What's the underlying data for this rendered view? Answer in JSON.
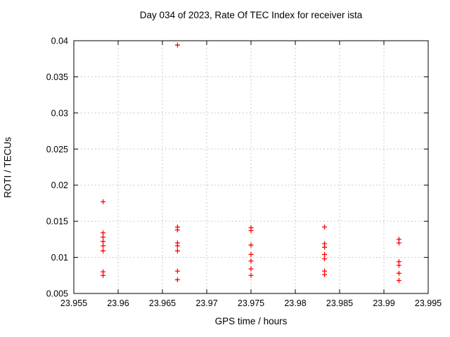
{
  "title": "Day 034 of 2023, Rate Of TEC Index for receiver ista",
  "chart_data": {
    "type": "scatter",
    "title": "Day 034 of 2023, Rate Of TEC Index for receiver ista",
    "xlabel": "GPS time / hours",
    "ylabel": "ROTI / TECUs",
    "xlim": [
      23.955,
      23.995
    ],
    "ylim": [
      0.005,
      0.04
    ],
    "xticks": [
      23.955,
      23.96,
      23.965,
      23.97,
      23.975,
      23.98,
      23.985,
      23.99,
      23.995
    ],
    "xtick_labels": [
      "23.955",
      "23.96",
      "23.965",
      "23.97",
      "23.975",
      "23.98",
      "23.985",
      "23.99",
      "23.995"
    ],
    "yticks": [
      0.005,
      0.01,
      0.015,
      0.02,
      0.025,
      0.03,
      0.035,
      0.04
    ],
    "ytick_labels": [
      "0.005",
      "0.01",
      "0.015",
      "0.02",
      "0.025",
      "0.03",
      "0.035",
      "0.04"
    ],
    "grid": true,
    "legend": "none",
    "marker": "plus",
    "marker_color": "#ff0000",
    "grid_color": "#b8b8b8",
    "axis_color": "#000000",
    "series": [
      {
        "name": "ROTI",
        "points": [
          [
            23.9583,
            0.0177
          ],
          [
            23.9583,
            0.0134
          ],
          [
            23.9583,
            0.0128
          ],
          [
            23.9583,
            0.0122
          ],
          [
            23.9583,
            0.0116
          ],
          [
            23.9583,
            0.0109
          ],
          [
            23.9583,
            0.008
          ],
          [
            23.9583,
            0.0075
          ],
          [
            23.9667,
            0.0394
          ],
          [
            23.9667,
            0.0142
          ],
          [
            23.9667,
            0.0138
          ],
          [
            23.9667,
            0.012
          ],
          [
            23.9667,
            0.0116
          ],
          [
            23.9667,
            0.0109
          ],
          [
            23.9667,
            0.0081
          ],
          [
            23.9667,
            0.0069
          ],
          [
            23.975,
            0.0141
          ],
          [
            23.975,
            0.0137
          ],
          [
            23.975,
            0.0117
          ],
          [
            23.975,
            0.0104
          ],
          [
            23.975,
            0.0095
          ],
          [
            23.975,
            0.0084
          ],
          [
            23.975,
            0.0075
          ],
          [
            23.9833,
            0.0142
          ],
          [
            23.9833,
            0.0119
          ],
          [
            23.9833,
            0.0114
          ],
          [
            23.9833,
            0.0104
          ],
          [
            23.9833,
            0.0098
          ],
          [
            23.9833,
            0.0081
          ],
          [
            23.9833,
            0.0076
          ],
          [
            23.9917,
            0.0125
          ],
          [
            23.9917,
            0.012
          ],
          [
            23.9917,
            0.0094
          ],
          [
            23.9917,
            0.0089
          ],
          [
            23.9917,
            0.0078
          ],
          [
            23.9917,
            0.0068
          ]
        ]
      }
    ]
  }
}
